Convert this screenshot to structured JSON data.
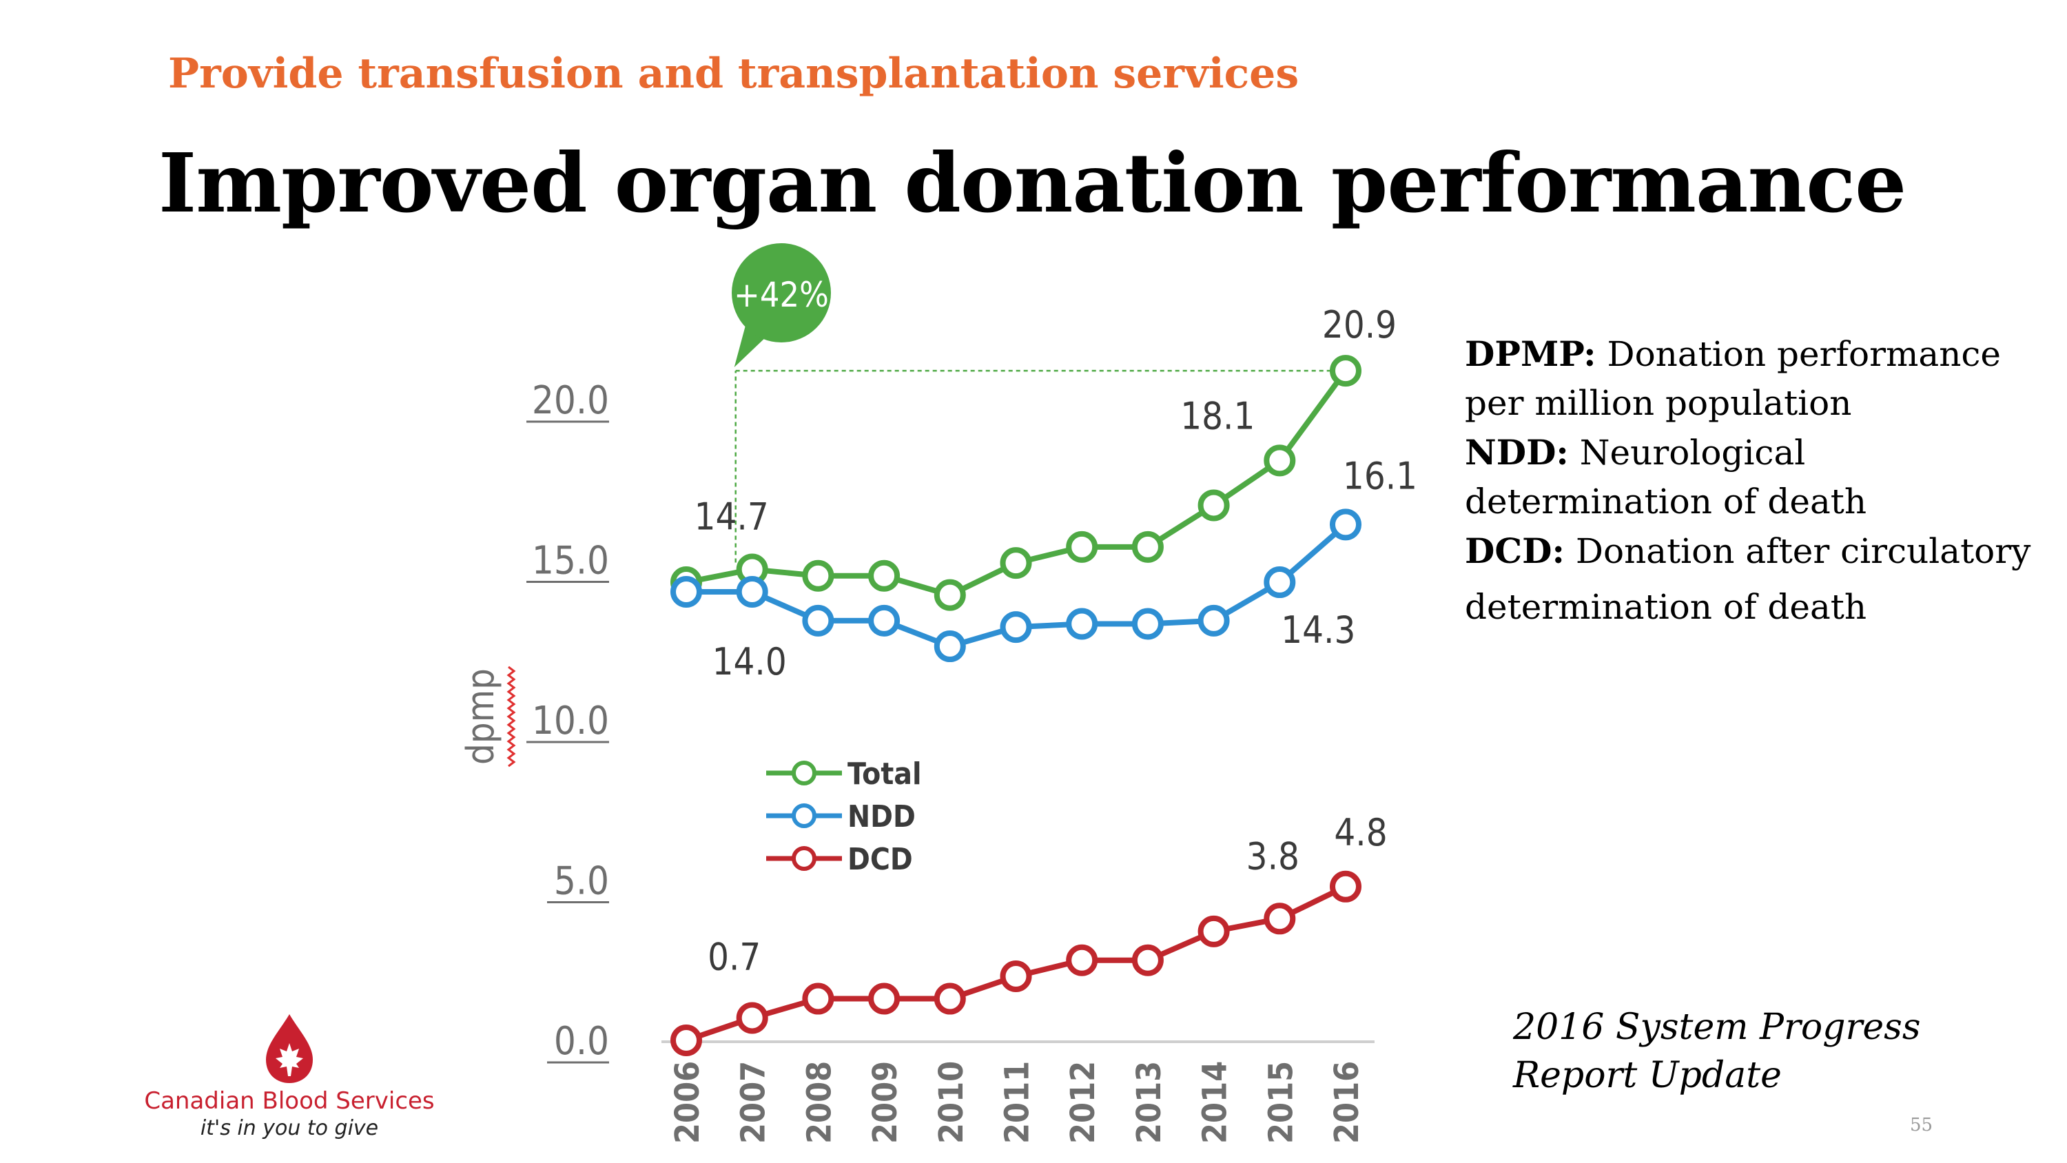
{
  "slide": {
    "subtitle": "Provide transfusion and transplantation services",
    "title": "Improved organ donation performance",
    "page_number": "55"
  },
  "definitions": [
    {
      "term": "DPMP:",
      "text": "Donation performance"
    },
    {
      "term": "",
      "text": "per million population"
    },
    {
      "term": "NDD:",
      "text": "Neurological"
    },
    {
      "term": "",
      "text": "determination of death"
    },
    {
      "term": "DCD:",
      "text": "Donation after circulatory"
    },
    {
      "term": "",
      "text": "determination of death"
    }
  ],
  "source": {
    "line1": "2016 System Progress",
    "line2": "Report Update"
  },
  "logo": {
    "name": "Canadian Blood Services",
    "tagline": "it's in you to give",
    "icon": "blood-drop-maple-leaf-icon"
  },
  "chart_data": {
    "type": "line",
    "ylabel": "dpmp",
    "ylim": [
      0,
      22
    ],
    "yticks": [
      "0.0",
      "5.0",
      "10.0",
      "15.0",
      "20.0"
    ],
    "ytick_values": [
      0,
      5,
      10,
      15,
      20
    ],
    "categories": [
      "2006",
      "2007",
      "2008",
      "2009",
      "2010",
      "2011",
      "2012",
      "2013",
      "2014",
      "2015",
      "2016"
    ],
    "legend_position": "center-left",
    "grid": false,
    "series": [
      {
        "name": "Total",
        "color": "#4ea944",
        "values": [
          14.3,
          14.7,
          14.5,
          14.5,
          13.9,
          14.9,
          15.4,
          15.4,
          16.7,
          18.1,
          20.9
        ]
      },
      {
        "name": "NDD",
        "color": "#2e8fd3",
        "values": [
          14.0,
          14.0,
          13.1,
          13.1,
          12.3,
          12.9,
          13.0,
          13.0,
          13.1,
          14.3,
          16.1
        ]
      },
      {
        "name": "DCD",
        "color": "#c0272d",
        "values": [
          0.0,
          0.7,
          1.3,
          1.3,
          1.3,
          2.0,
          2.5,
          2.5,
          3.4,
          3.8,
          4.8
        ]
      }
    ],
    "data_labels": [
      {
        "series": "Total",
        "x": "2007",
        "text": "14.7"
      },
      {
        "series": "Total",
        "x": "2015",
        "text": "18.1"
      },
      {
        "series": "Total",
        "x": "2016",
        "text": "20.9"
      },
      {
        "series": "NDD",
        "x": "2007",
        "text": "14.0"
      },
      {
        "series": "NDD",
        "x": "2015",
        "text": "14.3"
      },
      {
        "series": "NDD",
        "x": "2016",
        "text": "16.1"
      },
      {
        "series": "DCD",
        "x": "2007",
        "text": "0.7"
      },
      {
        "series": "DCD",
        "x": "2015",
        "text": "3.8"
      },
      {
        "series": "DCD",
        "x": "2016",
        "text": "4.8"
      }
    ],
    "annotation": {
      "text": "+42%",
      "from": "2007",
      "to": "2016",
      "series": "Total",
      "color": "#4ea944"
    }
  }
}
